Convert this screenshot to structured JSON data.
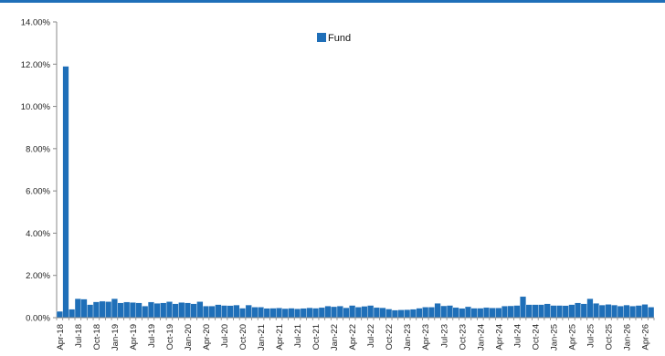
{
  "chart_data": {
    "type": "bar",
    "title": "",
    "xlabel": "",
    "ylabel": "",
    "ylim": [
      0,
      14
    ],
    "y_ticks": [
      "0.00%",
      "2.00%",
      "4.00%",
      "6.00%",
      "8.00%",
      "10.00%",
      "12.00%",
      "14.00%"
    ],
    "y_tick_values": [
      0,
      2,
      4,
      6,
      8,
      10,
      12,
      14
    ],
    "x_tick_labels": [
      "Apr-18",
      "Jul-18",
      "Oct-18",
      "Jan-19",
      "Apr-19",
      "Jul-19",
      "Oct-19",
      "Jan-20",
      "Apr-20",
      "Jul-20",
      "Oct-20",
      "Jan-21",
      "Apr-21",
      "Jul-21",
      "Oct-21",
      "Jan-22",
      "Apr-22",
      "Jul-22",
      "Oct-22",
      "Jan-23",
      "Apr-23",
      "Jul-23",
      "Oct-23",
      "Jan-24",
      "Apr-24",
      "Jul-24",
      "Oct-24",
      "Jan-25",
      "Apr-25",
      "Jul-25",
      "Oct-25",
      "Jan-26",
      "Apr-26"
    ],
    "legend_position": "top-center",
    "grid": false,
    "colors": {
      "fund": "#1f6fb8",
      "axis": "#888888",
      "top_rule": "#1f6fb8"
    },
    "series": [
      {
        "name": "Fund",
        "start": "Apr-18",
        "end": "Apr-26",
        "frequency": "monthly",
        "values": [
          0.3,
          11.9,
          0.4,
          0.9,
          0.88,
          0.62,
          0.75,
          0.78,
          0.76,
          0.9,
          0.7,
          0.74,
          0.72,
          0.7,
          0.55,
          0.74,
          0.68,
          0.7,
          0.76,
          0.66,
          0.72,
          0.7,
          0.66,
          0.76,
          0.55,
          0.55,
          0.62,
          0.58,
          0.57,
          0.6,
          0.45,
          0.6,
          0.5,
          0.5,
          0.44,
          0.45,
          0.46,
          0.43,
          0.45,
          0.42,
          0.44,
          0.47,
          0.45,
          0.48,
          0.55,
          0.52,
          0.55,
          0.47,
          0.58,
          0.5,
          0.54,
          0.58,
          0.48,
          0.47,
          0.41,
          0.36,
          0.37,
          0.38,
          0.4,
          0.45,
          0.5,
          0.5,
          0.68,
          0.56,
          0.58,
          0.48,
          0.44,
          0.52,
          0.45,
          0.45,
          0.48,
          0.46,
          0.46,
          0.55,
          0.56,
          0.58,
          1.0,
          0.62,
          0.62,
          0.62,
          0.66,
          0.58,
          0.58,
          0.57,
          0.62,
          0.7,
          0.66,
          0.9,
          0.68,
          0.6,
          0.63,
          0.6,
          0.55,
          0.6,
          0.55,
          0.58,
          0.63,
          0.5
        ]
      }
    ]
  }
}
